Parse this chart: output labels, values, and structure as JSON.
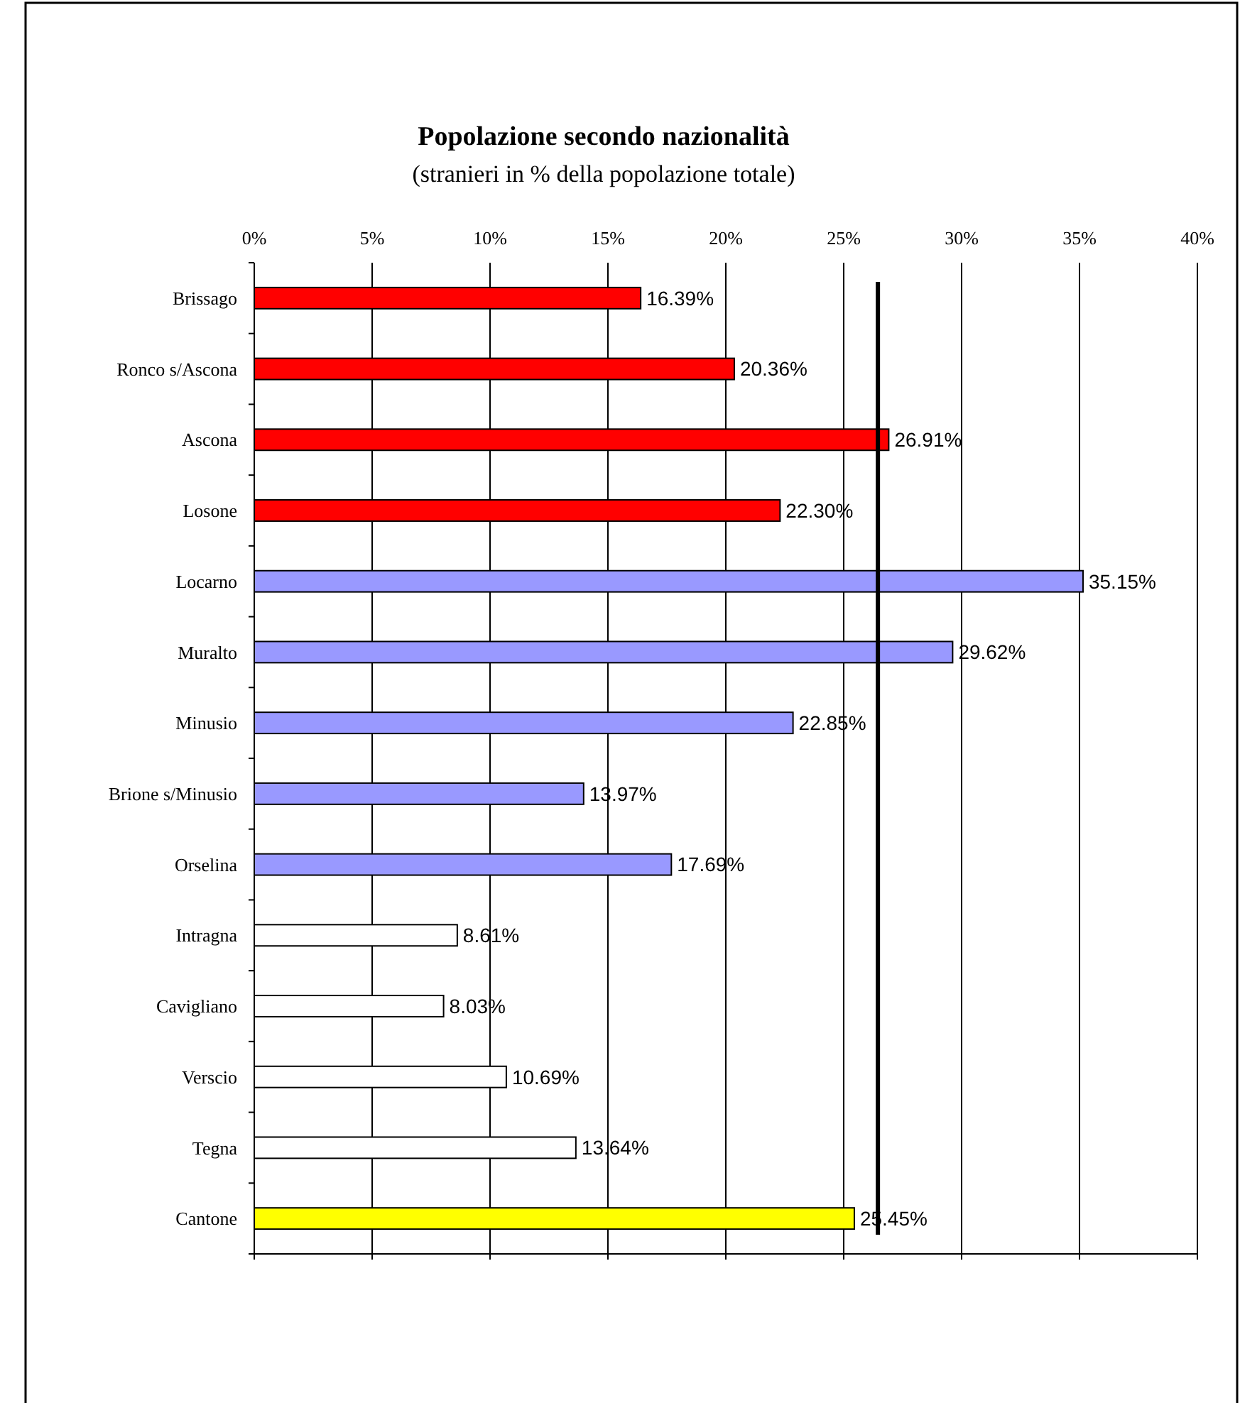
{
  "chart_data": {
    "type": "bar",
    "orientation": "horizontal",
    "title": "Popolazione secondo nazionalità",
    "subtitle": "(stranieri in % della popolazione totale)",
    "categories": [
      "Brissago",
      "Ronco s/Ascona",
      "Ascona",
      "Losone",
      "Locarno",
      "Muralto",
      "Minusio",
      "Brione s/Minusio",
      "Orselina",
      "Intragna",
      "Cavigliano",
      "Verscio",
      "Tegna",
      "Cantone"
    ],
    "values": [
      16.39,
      20.36,
      26.91,
      22.3,
      35.15,
      29.62,
      22.85,
      13.97,
      17.69,
      8.61,
      8.03,
      10.69,
      13.64,
      25.45
    ],
    "value_labels": [
      "16.39%",
      "20.36%",
      "26.91%",
      "22.30%",
      "35.15%",
      "29.62%",
      "22.85%",
      "13.97%",
      "17.69%",
      "8.61%",
      "8.03%",
      "10.69%",
      "13.64%",
      "25.45%"
    ],
    "colors": [
      "#ff0000",
      "#ff0000",
      "#ff0000",
      "#ff0000",
      "#9999ff",
      "#9999ff",
      "#9999ff",
      "#9999ff",
      "#9999ff",
      "#ffffff",
      "#ffffff",
      "#ffffff",
      "#ffffff",
      "#ffff00"
    ],
    "xlim": [
      0,
      40
    ],
    "xticks": [
      {
        "value": 0,
        "label": "0%"
      },
      {
        "value": 5,
        "label": "5%"
      },
      {
        "value": 10,
        "label": "10%"
      },
      {
        "value": 15,
        "label": "15%"
      },
      {
        "value": 20,
        "label": "20%"
      },
      {
        "value": 25,
        "label": "25%"
      },
      {
        "value": 30,
        "label": "30%"
      },
      {
        "value": 35,
        "label": "35%"
      },
      {
        "value": 40,
        "label": "40%"
      }
    ],
    "grid": "x",
    "ref_lines": [
      {
        "axis": "x",
        "value": 26.45,
        "color": "#000000"
      }
    ]
  }
}
